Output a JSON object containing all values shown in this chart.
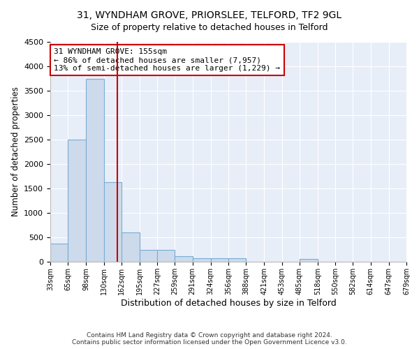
{
  "title1": "31, WYNDHAM GROVE, PRIORSLEE, TELFORD, TF2 9GL",
  "title2": "Size of property relative to detached houses in Telford",
  "xlabel": "Distribution of detached houses by size in Telford",
  "ylabel": "Number of detached properties",
  "bin_edges": [
    33,
    65,
    98,
    130,
    162,
    195,
    227,
    259,
    291,
    324,
    356,
    388,
    421,
    453,
    485,
    518,
    550,
    582,
    614,
    647,
    679
  ],
  "bar_heights": [
    375,
    2500,
    3750,
    1625,
    600,
    240,
    240,
    110,
    65,
    65,
    65,
    0,
    0,
    0,
    55,
    0,
    0,
    0,
    0,
    0
  ],
  "bar_color": "#ccdaeb",
  "bar_edge_color": "#7aadd4",
  "vline_x": 155,
  "vline_color": "#cc0000",
  "annotation_line1": "31 WYNDHAM GROVE: 155sqm",
  "annotation_line2": "← 86% of detached houses are smaller (7,957)",
  "annotation_line3": "13% of semi-detached houses are larger (1,229) →",
  "annotation_box_color": "#cc0000",
  "ylim": [
    0,
    4500
  ],
  "yticks": [
    0,
    500,
    1000,
    1500,
    2000,
    2500,
    3000,
    3500,
    4000,
    4500
  ],
  "bg_color": "#e8eef8",
  "grid_color": "#ffffff",
  "footer_text": "Contains HM Land Registry data © Crown copyright and database right 2024.\nContains public sector information licensed under the Open Government Licence v3.0."
}
